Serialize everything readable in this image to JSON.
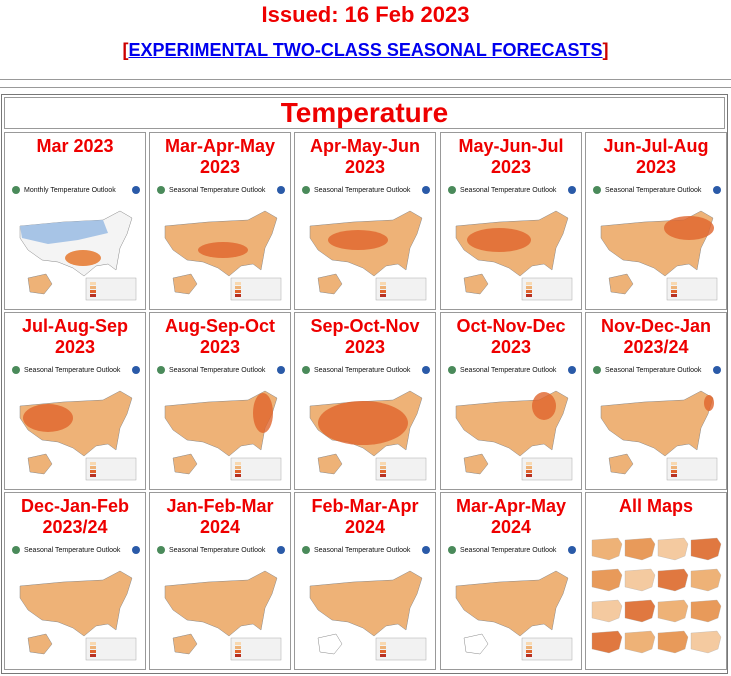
{
  "header": {
    "issued": "Issued: 16 Feb 2023",
    "link": {
      "open": "[",
      "text": "EXPERIMENTAL TWO-CLASS SEASONAL FORECASTS",
      "close": "]"
    }
  },
  "table": {
    "title": "Temperature",
    "cells": [
      {
        "title": [
          "Mar 2023"
        ],
        "map_title": "Monthly Temperature Outlook"
      },
      {
        "title": [
          "Mar-Apr-May",
          "2023"
        ],
        "map_title": "Seasonal Temperature Outlook"
      },
      {
        "title": [
          "Apr-May-Jun",
          "2023"
        ],
        "map_title": "Seasonal Temperature Outlook"
      },
      {
        "title": [
          "May-Jun-Jul",
          "2023"
        ],
        "map_title": "Seasonal Temperature Outlook"
      },
      {
        "title": [
          "Jun-Jul-Aug",
          "2023"
        ],
        "map_title": "Seasonal Temperature Outlook"
      },
      {
        "title": [
          "Jul-Aug-Sep",
          "2023"
        ],
        "map_title": "Seasonal Temperature Outlook"
      },
      {
        "title": [
          "Aug-Sep-Oct",
          "2023"
        ],
        "map_title": "Seasonal Temperature Outlook"
      },
      {
        "title": [
          "Sep-Oct-Nov",
          "2023"
        ],
        "map_title": "Seasonal Temperature Outlook"
      },
      {
        "title": [
          "Oct-Nov-Dec",
          "2023"
        ],
        "map_title": "Seasonal Temperature Outlook"
      },
      {
        "title": [
          "Nov-Dec-Jan",
          "2023/24"
        ],
        "map_title": "Seasonal Temperature Outlook"
      },
      {
        "title": [
          "Dec-Jan-Feb",
          "2023/24"
        ],
        "map_title": "Seasonal Temperature Outlook"
      },
      {
        "title": [
          "Jan-Feb-Mar",
          "2024"
        ],
        "map_title": "Seasonal Temperature Outlook"
      },
      {
        "title": [
          "Feb-Mar-Apr",
          "2024"
        ],
        "map_title": "Seasonal Temperature Outlook"
      },
      {
        "title": [
          "Mar-Apr-May",
          "2024"
        ],
        "map_title": "Seasonal Temperature Outlook"
      },
      {
        "title": [
          "All Maps"
        ]
      }
    ]
  }
}
